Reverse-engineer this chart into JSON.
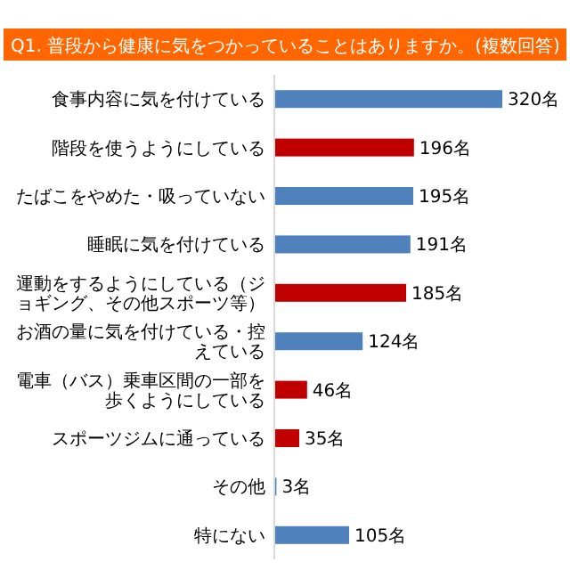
{
  "chart_data": {
    "type": "bar",
    "orientation": "horizontal",
    "title": "Q1. 普段から健康に気をつかっていることはありますか。(複数回答)",
    "categories": [
      "食事内容に気を付けている",
      "階段を使うようにしている",
      "たばこをやめた・吸っていない",
      "睡眠に気を付けている",
      "運動をするようにしている（ジョギング、その他スポーツ等）",
      "お酒の量に気を付けている・控えている",
      "電車（バス）乗車区間の一部を歩くようにしている",
      "スポーツジムに通っている",
      "その他",
      "特にない"
    ],
    "values": [
      320,
      196,
      195,
      191,
      185,
      124,
      46,
      35,
      3,
      105
    ],
    "value_labels": [
      "320名",
      "196名",
      "195名",
      "191名",
      "185名",
      "124名",
      "46名",
      "35名",
      "3名",
      "105名"
    ],
    "colors": [
      "#4f81bd",
      "#c00000",
      "#4f81bd",
      "#4f81bd",
      "#c00000",
      "#4f81bd",
      "#c00000",
      "#c00000",
      "#4f81bd",
      "#4f81bd"
    ],
    "xlim": [
      0,
      320
    ]
  }
}
